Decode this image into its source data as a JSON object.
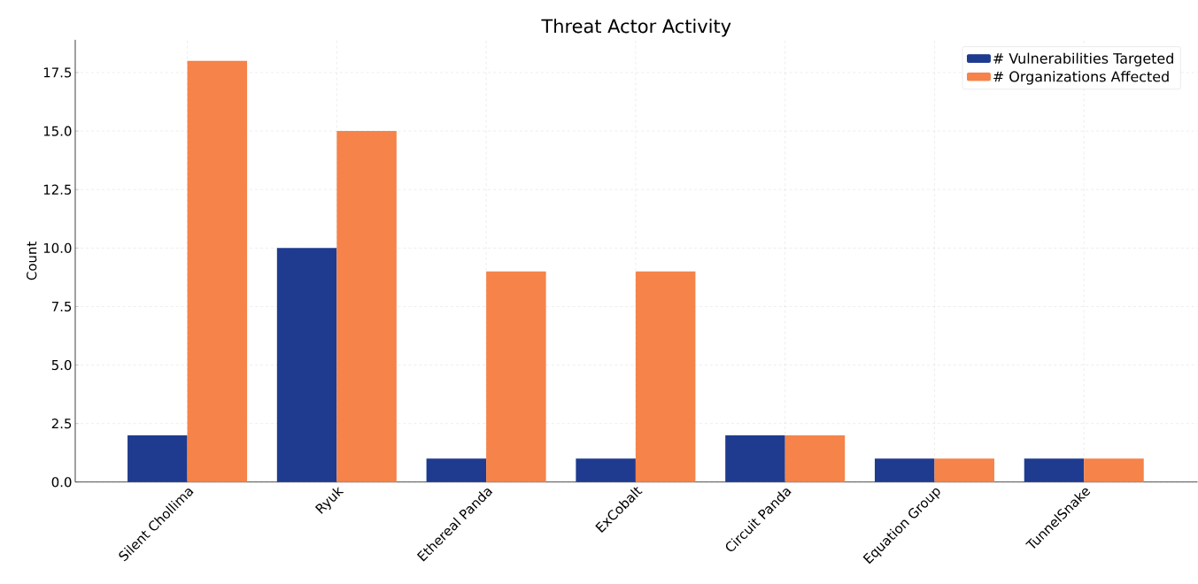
{
  "chart_data": {
    "type": "bar",
    "title": "Threat Actor Activity",
    "ylabel": "Count",
    "categories": [
      "Silent Chollima",
      "Ryuk",
      "Ethereal Panda",
      "ExCobalt",
      "Circuit Panda",
      "Equation Group",
      "TunnelSnake"
    ],
    "series": [
      {
        "name": "# Vulnerabilities Targeted",
        "color": "#1f3b8f",
        "values": [
          2,
          10,
          1,
          1,
          2,
          1,
          1
        ]
      },
      {
        "name": "# Organizations Affected",
        "color": "#f5834a",
        "values": [
          18,
          15,
          9,
          9,
          2,
          1,
          1
        ]
      }
    ],
    "ylim": [
      0,
      18.9
    ],
    "yticks": [
      {
        "value": 0,
        "label": "0.0"
      },
      {
        "value": 2.5,
        "label": "2.5"
      },
      {
        "value": 5,
        "label": "5.0"
      },
      {
        "value": 7.5,
        "label": "7.5"
      },
      {
        "value": 10,
        "label": "10.0"
      },
      {
        "value": 12.5,
        "label": "12.5"
      },
      {
        "value": 15,
        "label": "15.0"
      },
      {
        "value": 17.5,
        "label": "17.5"
      }
    ],
    "grid": true,
    "legend": "top right"
  }
}
